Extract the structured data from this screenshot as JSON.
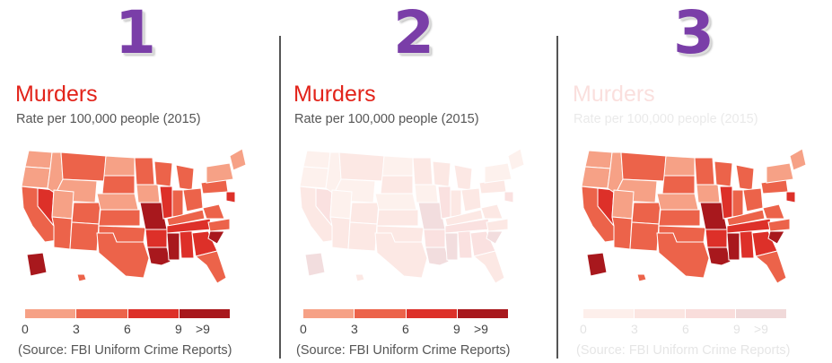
{
  "panels": [
    {
      "number": "1",
      "title": "Murders",
      "subtitle": "Rate per 100,000 people (2015)",
      "legend_ticks": [
        "0",
        "3",
        "6",
        "9",
        ">9"
      ],
      "source": "(Source: FBI Uniform Crime Reports)",
      "opacity": 1.0
    },
    {
      "number": "2",
      "title": "Murders",
      "subtitle": "Rate per 100,000 people (2015)",
      "legend_ticks": [
        "0",
        "3",
        "6",
        "9",
        ">9"
      ],
      "source": "(Source: FBI Uniform Crime Reports)",
      "opacity": 1.0
    },
    {
      "number": "3",
      "title": "Murders",
      "subtitle": "Rate per 100,000 people (2015)",
      "legend_ticks": [
        "0",
        "3",
        "6",
        "9",
        ">9"
      ],
      "source": "(Source: FBI Uniform Crime Reports)",
      "opacity": 1.0
    }
  ],
  "legend_colors": [
    "#f6a186",
    "#ec634a",
    "#dd3029",
    "#a8181d"
  ],
  "title_color": "#e2231a",
  "number_color": "#7a3ea8"
}
